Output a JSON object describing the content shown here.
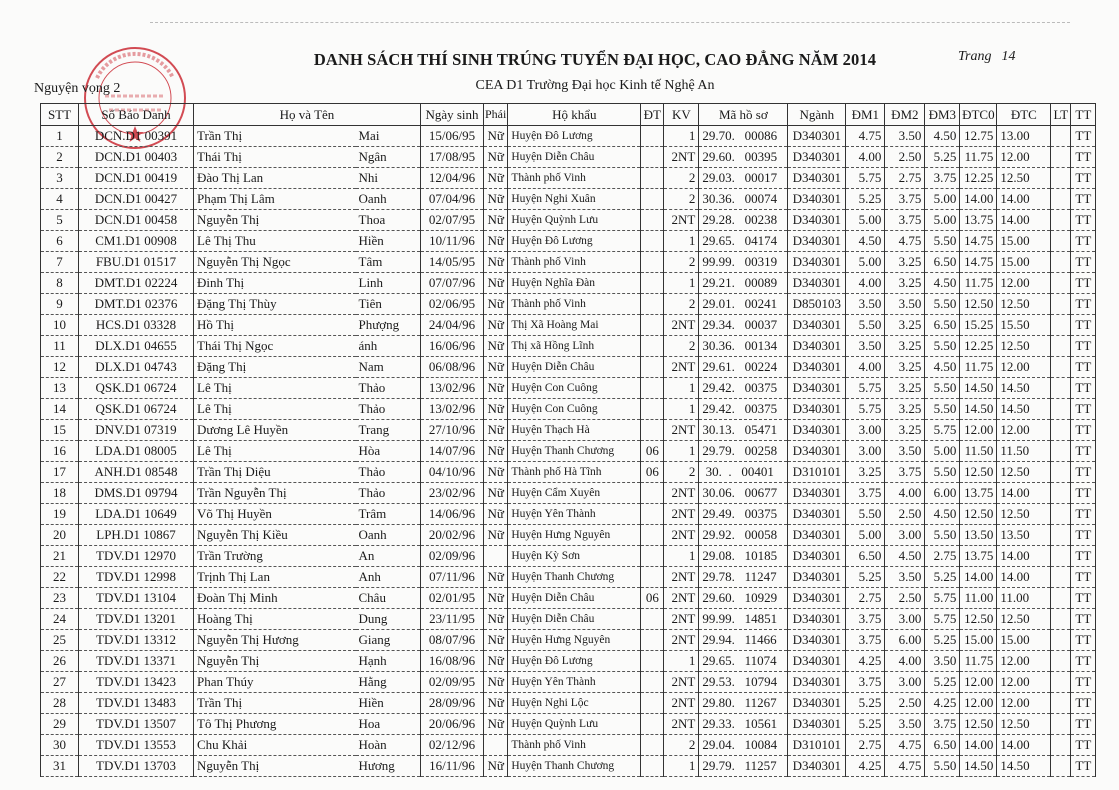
{
  "header": {
    "title": "DANH SÁCH THÍ SINH TRÚNG TUYỂN ĐẠI HỌC, CAO ĐẲNG NĂM 2014",
    "subtitle": "CEA D1 Trường Đại học Kinh tế Nghệ An",
    "wish": "Nguyện vọng 2",
    "page_label": "Trang",
    "page_number": "14"
  },
  "stamp": {
    "text": "TRƯỜNG ĐẠI HỌC KINH TẾ NGHỆ AN",
    "top_arc": "NHÂN DÂN TỈNH",
    "color": "#c8202a"
  },
  "table": {
    "columns": [
      "STT",
      "Số Báo Danh",
      "Họ và Tên",
      "Ngày sinh",
      "Phái",
      "Hộ khẩu",
      "ĐT",
      "KV",
      "Mã hồ sơ",
      "Ngành",
      "ĐM1",
      "ĐM2",
      "ĐM3",
      "ĐTC0",
      "ĐTC",
      "LT",
      "TT"
    ],
    "rows": [
      [
        "1",
        "DCN.D1 00391",
        "Trần Thị",
        "Mai",
        "15/06/95",
        "Nữ",
        "Huyện Đô Lương",
        "",
        "1",
        "29.70.   00086",
        "D340301",
        "4.75",
        "3.50",
        "4.50",
        "12.75",
        "13.00",
        "",
        "TT"
      ],
      [
        "2",
        "DCN.D1 00403",
        "Thái Thị",
        "Ngân",
        "17/08/95",
        "Nữ",
        "Huyện Diễn Châu",
        "",
        "2NT",
        "29.60.   00395",
        "D340301",
        "4.00",
        "2.50",
        "5.25",
        "11.75",
        "12.00",
        "",
        "TT"
      ],
      [
        "3",
        "DCN.D1 00419",
        "Đào Thị Lan",
        "Nhi",
        "12/04/96",
        "Nữ",
        "Thành phố Vinh",
        "",
        "2",
        "29.03.   00017",
        "D340301",
        "5.75",
        "2.75",
        "3.75",
        "12.25",
        "12.50",
        "",
        "TT"
      ],
      [
        "4",
        "DCN.D1 00427",
        "Phạm Thị Lâm",
        "Oanh",
        "07/04/96",
        "Nữ",
        "Huyện Nghi Xuân",
        "",
        "2",
        "30.36.   00074",
        "D340301",
        "5.25",
        "3.75",
        "5.00",
        "14.00",
        "14.00",
        "",
        "TT"
      ],
      [
        "5",
        "DCN.D1 00458",
        "Nguyễn Thị",
        "Thoa",
        "02/07/95",
        "Nữ",
        "Huyện Quỳnh Lưu",
        "",
        "2NT",
        "29.28.   00238",
        "D340301",
        "5.00",
        "3.75",
        "5.00",
        "13.75",
        "14.00",
        "",
        "TT"
      ],
      [
        "6",
        "CM1.D1 00908",
        "Lê Thị Thu",
        "Hiền",
        "10/11/96",
        "Nữ",
        "Huyện Đô Lương",
        "",
        "1",
        "29.65.   04174",
        "D340301",
        "4.50",
        "4.75",
        "5.50",
        "14.75",
        "15.00",
        "",
        "TT"
      ],
      [
        "7",
        "FBU.D1 01517",
        "Nguyễn Thị Ngọc",
        "Tâm",
        "14/05/95",
        "Nữ",
        "Thành phố Vinh",
        "",
        "2",
        "99.99.   00319",
        "D340301",
        "5.00",
        "3.25",
        "6.50",
        "14.75",
        "15.00",
        "",
        "TT"
      ],
      [
        "8",
        "DMT.D1 02224",
        "Đinh Thị",
        "Linh",
        "07/07/96",
        "Nữ",
        "Huyện Nghĩa Đàn",
        "",
        "1",
        "29.21.   00089",
        "D340301",
        "4.00",
        "3.25",
        "4.50",
        "11.75",
        "12.00",
        "",
        "TT"
      ],
      [
        "9",
        "DMT.D1 02376",
        "Đặng Thị Thùy",
        "Tiên",
        "02/06/95",
        "Nữ",
        "Thành phố Vinh",
        "",
        "2",
        "29.01.   00241",
        "D850103",
        "3.50",
        "3.50",
        "5.50",
        "12.50",
        "12.50",
        "",
        "TT"
      ],
      [
        "10",
        "HCS.D1 03328",
        "Hồ Thị",
        "Phượng",
        "24/04/96",
        "Nữ",
        "Thị Xã Hoàng Mai",
        "",
        "2NT",
        "29.34.   00037",
        "D340301",
        "5.50",
        "3.25",
        "6.50",
        "15.25",
        "15.50",
        "",
        "TT"
      ],
      [
        "11",
        "DLX.D1 04655",
        "Thái Thị Ngọc",
        "ánh",
        "16/06/96",
        "Nữ",
        "Thị xã Hồng Lĩnh",
        "",
        "2",
        "30.36.   00134",
        "D340301",
        "3.50",
        "3.25",
        "5.50",
        "12.25",
        "12.50",
        "",
        "TT"
      ],
      [
        "12",
        "DLX.D1 04743",
        "Đặng Thị",
        "Nam",
        "06/08/96",
        "Nữ",
        "Huyện Diễn Châu",
        "",
        "2NT",
        "29.61.   00224",
        "D340301",
        "4.00",
        "3.25",
        "4.50",
        "11.75",
        "12.00",
        "",
        "TT"
      ],
      [
        "13",
        "QSK.D1 06724",
        "Lê Thị",
        "Thảo",
        "13/02/96",
        "Nữ",
        "Huyện Con Cuông",
        "",
        "1",
        "29.42.   00375",
        "D340301",
        "5.75",
        "3.25",
        "5.50",
        "14.50",
        "14.50",
        "",
        "TT"
      ],
      [
        "14",
        "QSK.D1 06724",
        "Lê Thị",
        "Thảo",
        "13/02/96",
        "Nữ",
        "Huyện Con Cuông",
        "",
        "1",
        "29.42.   00375",
        "D340301",
        "5.75",
        "3.25",
        "5.50",
        "14.50",
        "14.50",
        "",
        "TT"
      ],
      [
        "15",
        "DNV.D1 07319",
        "Dương Lê Huyền",
        "Trang",
        "27/10/96",
        "Nữ",
        "Huyện Thạch Hà",
        "",
        "2NT",
        "30.13.   05471",
        "D340301",
        "3.00",
        "3.25",
        "5.75",
        "12.00",
        "12.00",
        "",
        "TT"
      ],
      [
        "16",
        "LDA.D1 08005",
        "Lê Thị",
        "Hòa",
        "14/07/96",
        "Nữ",
        "Huyện Thanh Chương",
        "06",
        "1",
        "29.79.   00258",
        "D340301",
        "3.00",
        "3.50",
        "5.00",
        "11.50",
        "11.50",
        "",
        "TT"
      ],
      [
        "17",
        "ANH.D1 08548",
        "Trần Thị Diệu",
        "Thảo",
        "04/10/96",
        "Nữ",
        "Thành phố Hà Tĩnh",
        "06",
        "2",
        " 30.  .   00401",
        "D310101",
        "3.25",
        "3.75",
        "5.50",
        "12.50",
        "12.50",
        "",
        "TT"
      ],
      [
        "18",
        "DMS.D1 09794",
        "Trần Nguyễn Thị",
        "Thảo",
        "23/02/96",
        "Nữ",
        "Huyện Cẩm Xuyên",
        "",
        "2NT",
        "30.06.   00677",
        "D340301",
        "3.75",
        "4.00",
        "6.00",
        "13.75",
        "14.00",
        "",
        "TT"
      ],
      [
        "19",
        "LDA.D1 10649",
        "Võ Thị Huyền",
        "Trâm",
        "14/06/96",
        "Nữ",
        "Huyện Yên Thành",
        "",
        "2NT",
        "29.49.   00375",
        "D340301",
        "5.50",
        "2.50",
        "4.50",
        "12.50",
        "12.50",
        "",
        "TT"
      ],
      [
        "20",
        "LPH.D1 10867",
        "Nguyễn Thị Kiều",
        "Oanh",
        "20/02/96",
        "Nữ",
        "Huyện Hưng Nguyên",
        "",
        "2NT",
        "29.92.   00058",
        "D340301",
        "5.00",
        "3.00",
        "5.50",
        "13.50",
        "13.50",
        "",
        "TT"
      ],
      [
        "21",
        "TDV.D1 12970",
        "Trần Trường",
        "An",
        "02/09/96",
        "",
        "Huyện Kỳ Sơn",
        "",
        "1",
        "29.08.   10185",
        "D340301",
        "6.50",
        "4.50",
        "2.75",
        "13.75",
        "14.00",
        "",
        "TT"
      ],
      [
        "22",
        "TDV.D1 12998",
        "Trịnh Thị Lan",
        "Anh",
        "07/11/96",
        "Nữ",
        "Huyện Thanh Chương",
        "",
        "2NT",
        "29.78.   11247",
        "D340301",
        "5.25",
        "3.50",
        "5.25",
        "14.00",
        "14.00",
        "",
        "TT"
      ],
      [
        "23",
        "TDV.D1 13104",
        "Đoàn Thị Minh",
        "Châu",
        "02/01/95",
        "Nữ",
        "Huyện Diễn Châu",
        "06",
        "2NT",
        "29.60.   10929",
        "D340301",
        "2.75",
        "2.50",
        "5.75",
        "11.00",
        "11.00",
        "",
        "TT"
      ],
      [
        "24",
        "TDV.D1 13201",
        "Hoàng Thị",
        "Dung",
        "23/11/95",
        "Nữ",
        "Huyện Diễn Châu",
        "",
        "2NT",
        "99.99.   14851",
        "D340301",
        "3.75",
        "3.00",
        "5.75",
        "12.50",
        "12.50",
        "",
        "TT"
      ],
      [
        "25",
        "TDV.D1 13312",
        "Nguyễn Thị Hương",
        "Giang",
        "08/07/96",
        "Nữ",
        "Huyện Hưng Nguyên",
        "",
        "2NT",
        "29.94.   11466",
        "D340301",
        "3.75",
        "6.00",
        "5.25",
        "15.00",
        "15.00",
        "",
        "TT"
      ],
      [
        "26",
        "TDV.D1 13371",
        "Nguyễn Thị",
        "Hạnh",
        "16/08/96",
        "Nữ",
        "Huyện Đô Lương",
        "",
        "1",
        "29.65.   11074",
        "D340301",
        "4.25",
        "4.00",
        "3.50",
        "11.75",
        "12.00",
        "",
        "TT"
      ],
      [
        "27",
        "TDV.D1 13423",
        "Phan Thúy",
        "Hằng",
        "02/09/95",
        "Nữ",
        "Huyện Yên Thành",
        "",
        "2NT",
        "29.53.   10794",
        "D340301",
        "3.75",
        "3.00",
        "5.25",
        "12.00",
        "12.00",
        "",
        "TT"
      ],
      [
        "28",
        "TDV.D1 13483",
        "Trần Thị",
        "Hiền",
        "28/09/96",
        "Nữ",
        "Huyện Nghi Lộc",
        "",
        "2NT",
        "29.80.   11267",
        "D340301",
        "5.25",
        "2.50",
        "4.25",
        "12.00",
        "12.00",
        "",
        "TT"
      ],
      [
        "29",
        "TDV.D1 13507",
        "Tô Thị Phương",
        "Hoa",
        "20/06/96",
        "Nữ",
        "Huyện Quỳnh Lưu",
        "",
        "2NT",
        "29.33.   10561",
        "D340301",
        "5.25",
        "3.50",
        "3.75",
        "12.50",
        "12.50",
        "",
        "TT"
      ],
      [
        "30",
        "TDV.D1 13553",
        "Chu Khải",
        "Hoàn",
        "02/12/96",
        "",
        "Thành phố Vinh",
        "",
        "2",
        "29.04.   10084",
        "D310101",
        "2.75",
        "4.75",
        "6.50",
        "14.00",
        "14.00",
        "",
        "TT"
      ],
      [
        "31",
        "TDV.D1 13703",
        "Nguyễn Thị",
        "Hương",
        "16/11/96",
        "Nữ",
        "Huyện Thanh Chương",
        "",
        "1",
        "29.79.   11257",
        "D340301",
        "4.25",
        "4.75",
        "5.50",
        "14.50",
        "14.50",
        "",
        "TT"
      ]
    ]
  }
}
